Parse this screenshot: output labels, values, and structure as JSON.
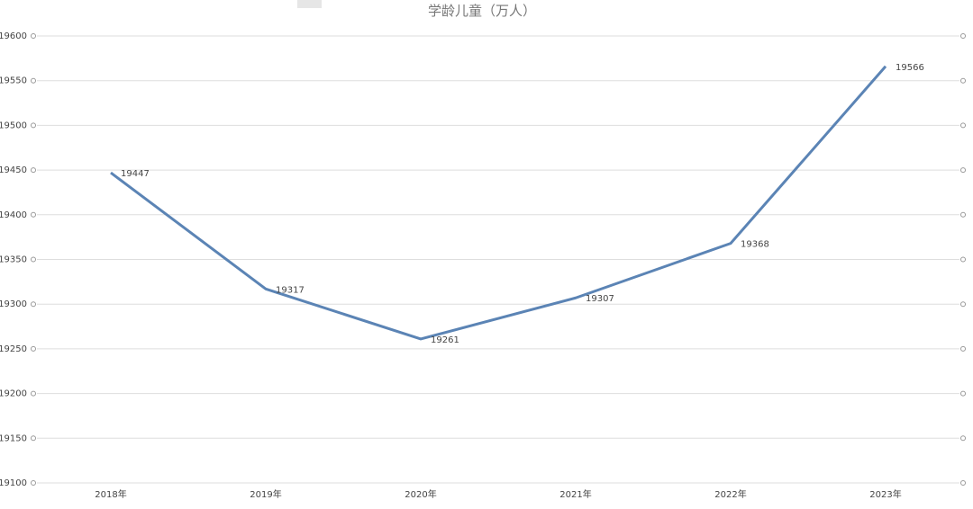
{
  "chart_data": {
    "type": "line",
    "title": "学龄儿童（万人）",
    "categories": [
      "2018年",
      "2019年",
      "2020年",
      "2021年",
      "2022年",
      "2023年"
    ],
    "series": [
      {
        "name": "学龄儿童",
        "color": "#5b84b5",
        "values": [
          19447,
          19317,
          19261,
          19307,
          19368,
          19566
        ]
      }
    ],
    "ylim": [
      19100,
      19600
    ],
    "yticks": [
      19100,
      19150,
      19200,
      19250,
      19300,
      19350,
      19400,
      19450,
      19500,
      19550,
      19600
    ],
    "grid": true
  }
}
